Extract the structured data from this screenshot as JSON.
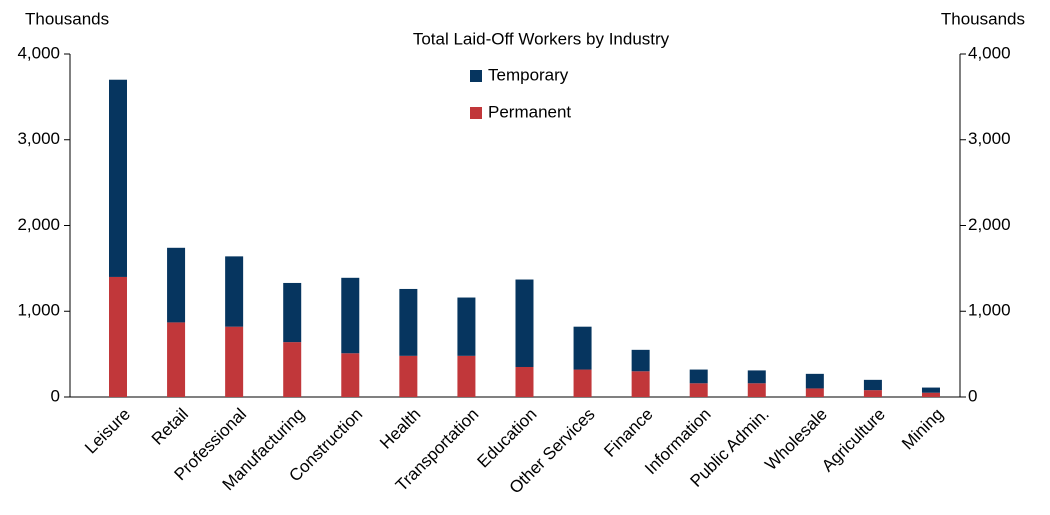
{
  "chart_data": {
    "type": "stacked_bar",
    "title": "Total Laid-Off Workers by Industry",
    "y_label": "Thousands",
    "y2_label": "Thousands",
    "categories": [
      "Leisure",
      "Retail",
      "Professional",
      "Manufacturing",
      "Construction",
      "Health",
      "Transportation",
      "Education",
      "Other Services",
      "Finance",
      "Information",
      "Public Admin.",
      "Wholesale",
      "Agriculture",
      "Mining"
    ],
    "series": [
      {
        "name": "Permanent",
        "color": "#c1373a",
        "values": [
          1400,
          870,
          820,
          640,
          510,
          480,
          480,
          350,
          320,
          300,
          160,
          160,
          100,
          80,
          50
        ]
      },
      {
        "name": "Temporary",
        "color": "#06355f",
        "values": [
          2300,
          870,
          820,
          690,
          880,
          780,
          680,
          1020,
          500,
          250,
          160,
          150,
          170,
          120,
          60
        ]
      }
    ],
    "ylim": [
      0,
      4000
    ],
    "yticks": [
      0,
      {
        "value": 1000,
        "label": "1,000"
      },
      {
        "value": 2000,
        "label": "2,000"
      },
      {
        "value": 3000,
        "label": "3,000"
      },
      {
        "value": 4000,
        "label": "4,000"
      }
    ],
    "y2lim": [
      0,
      4000
    ],
    "y2ticks": [
      0,
      {
        "value": 1000,
        "label": "1,000"
      },
      {
        "value": 2000,
        "label": "2,000"
      },
      {
        "value": 3000,
        "label": "3,000"
      },
      {
        "value": 4000,
        "label": "4,000"
      }
    ],
    "grid": false
  }
}
